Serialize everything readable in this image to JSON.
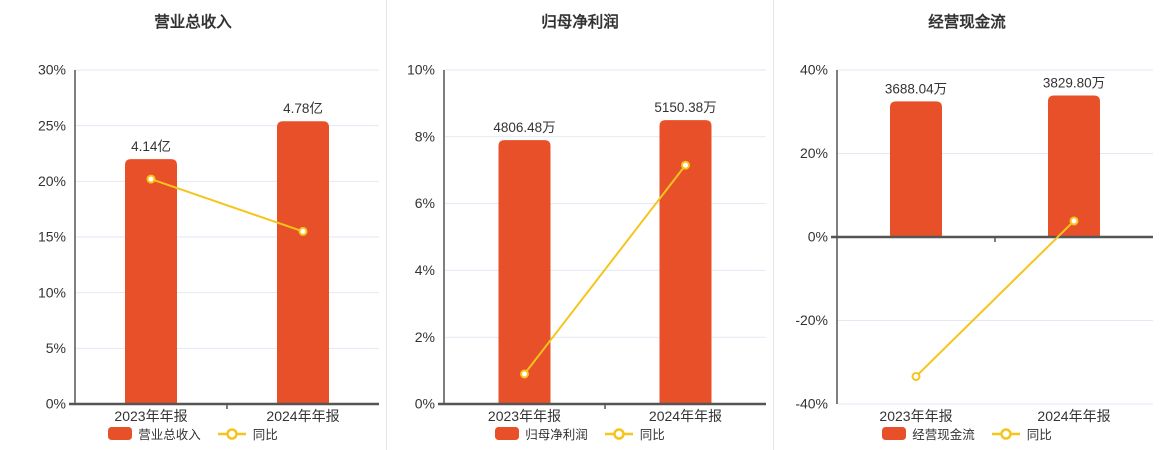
{
  "colors": {
    "bar": "#e8502a",
    "line": "#f5c51d",
    "marker_fill": "#ffffff",
    "axis": "#555555",
    "grid": "#e2e9f4",
    "text": "#333333",
    "divider": "#e4e4e4"
  },
  "chart_data": [
    {
      "type": "bar",
      "title": "营业总收入",
      "categories": [
        "2023年年报",
        "2024年年报"
      ],
      "bar_series": {
        "name": "营业总收入",
        "value_labels": [
          "4.14亿",
          "4.78亿"
        ],
        "plotted_axis_values": [
          22.0,
          25.4
        ]
      },
      "line_series": {
        "name": "同比",
        "unit": "%",
        "values_pct": [
          20.2,
          15.5
        ]
      },
      "ylim": [
        0,
        30
      ],
      "ytick_step": 5,
      "ytick_suffix": "%",
      "grid": true,
      "legend_position": "bottom"
    },
    {
      "type": "bar",
      "title": "归母净利润",
      "categories": [
        "2023年年报",
        "2024年年报"
      ],
      "bar_series": {
        "name": "归母净利润",
        "value_labels": [
          "4806.48万",
          "5150.38万"
        ],
        "plotted_axis_values": [
          7.9,
          8.5
        ]
      },
      "line_series": {
        "name": "同比",
        "unit": "%",
        "values_pct": [
          0.9,
          7.15
        ]
      },
      "ylim": [
        0,
        10
      ],
      "ytick_step": 2,
      "ytick_suffix": "%",
      "grid": true,
      "legend_position": "bottom"
    },
    {
      "type": "bar",
      "title": "经营现金流",
      "categories": [
        "2023年年报",
        "2024年年报"
      ],
      "bar_series": {
        "name": "经营现金流",
        "value_labels": [
          "3688.04万",
          "3829.80万"
        ],
        "plotted_axis_values": [
          32.5,
          33.9
        ]
      },
      "line_series": {
        "name": "同比",
        "unit": "%",
        "values_pct": [
          -33.4,
          3.84
        ]
      },
      "ylim": [
        -40,
        40
      ],
      "ytick_step": 20,
      "ytick_suffix": "%",
      "grid": true,
      "legend_position": "bottom"
    }
  ]
}
